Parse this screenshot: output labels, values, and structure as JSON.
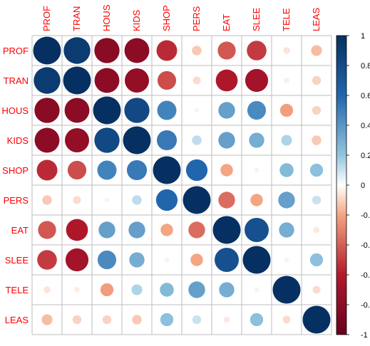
{
  "chart_data": {
    "type": "heatmap",
    "variables": [
      "PROF",
      "TRAN",
      "HOUS",
      "KIDS",
      "SHOP",
      "PERS",
      "EAT",
      "SLEE",
      "TELE",
      "LEAS"
    ],
    "matrix": [
      [
        1.0,
        0.92,
        -0.82,
        -0.8,
        -0.55,
        -0.12,
        -0.42,
        -0.5,
        -0.06,
        -0.15
      ],
      [
        0.92,
        1.0,
        -0.8,
        -0.76,
        -0.45,
        -0.08,
        -0.62,
        -0.68,
        -0.04,
        -0.1
      ],
      [
        -0.82,
        -0.8,
        1.0,
        0.82,
        0.48,
        -0.03,
        0.36,
        0.45,
        -0.22,
        -0.1
      ],
      [
        -0.8,
        -0.76,
        0.82,
        1.0,
        0.52,
        0.12,
        0.36,
        0.3,
        0.15,
        -0.12
      ],
      [
        -0.55,
        -0.45,
        0.48,
        0.52,
        1.0,
        0.6,
        -0.2,
        0.03,
        0.25,
        0.22
      ],
      [
        -0.12,
        -0.08,
        -0.03,
        0.12,
        0.6,
        1.0,
        -0.36,
        -0.2,
        0.36,
        0.1
      ],
      [
        -0.42,
        -0.62,
        0.36,
        0.36,
        -0.2,
        -0.36,
        1.0,
        0.76,
        0.3,
        -0.05
      ],
      [
        -0.5,
        -0.68,
        0.45,
        0.3,
        0.03,
        -0.2,
        0.76,
        1.0,
        0.03,
        0.22
      ],
      [
        -0.06,
        -0.04,
        -0.22,
        0.15,
        0.25,
        0.36,
        0.3,
        0.03,
        1.0,
        -0.08
      ],
      [
        -0.15,
        -0.1,
        -0.1,
        -0.12,
        0.22,
        0.1,
        -0.05,
        0.22,
        -0.08,
        1.0
      ]
    ],
    "colorbar": {
      "ticks": [
        "1",
        "0.8",
        "0.6",
        "0.4",
        "0.2",
        "0",
        "-0.2",
        "-0.4",
        "-0.6",
        "-0.8",
        "-1"
      ],
      "range": [
        -1,
        1
      ]
    },
    "label_color": "#ff0000",
    "colors": {
      "negative": "#67001f",
      "neg_mid": "#b2182b",
      "neg_light": "#f4a582",
      "neutral": "#ffffff",
      "pos_light": "#92c5de",
      "pos_mid": "#2166ac",
      "positive": "#053061"
    },
    "grid": true
  }
}
